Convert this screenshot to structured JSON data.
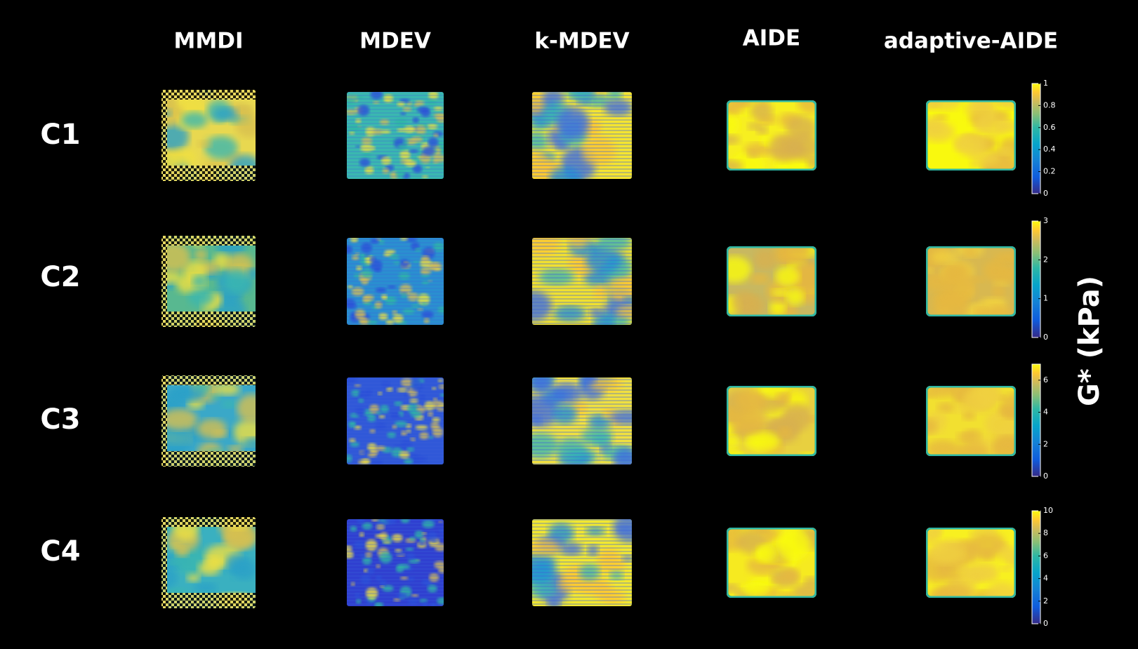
{
  "header": {
    "columns": [
      "MMDI",
      "MDEV",
      "k-MDEV",
      "AIDE",
      "adaptive-AIDE"
    ]
  },
  "rows": [
    "C1",
    "C2",
    "C3",
    "C4"
  ],
  "colorbars": [
    {
      "lim": [
        0,
        1
      ],
      "ticks": [
        0,
        0.2,
        0.4,
        0.6,
        0.8,
        1
      ]
    },
    {
      "lim": [
        0,
        3
      ],
      "ticks": [
        0,
        1,
        2,
        3
      ]
    },
    {
      "lim": [
        0,
        7
      ],
      "ticks": [
        0,
        2,
        4,
        6
      ]
    },
    {
      "lim": [
        0,
        10
      ],
      "ticks": [
        0,
        2,
        4,
        6,
        8,
        10
      ]
    }
  ],
  "colorbar_label": "G* (kPa)"
}
